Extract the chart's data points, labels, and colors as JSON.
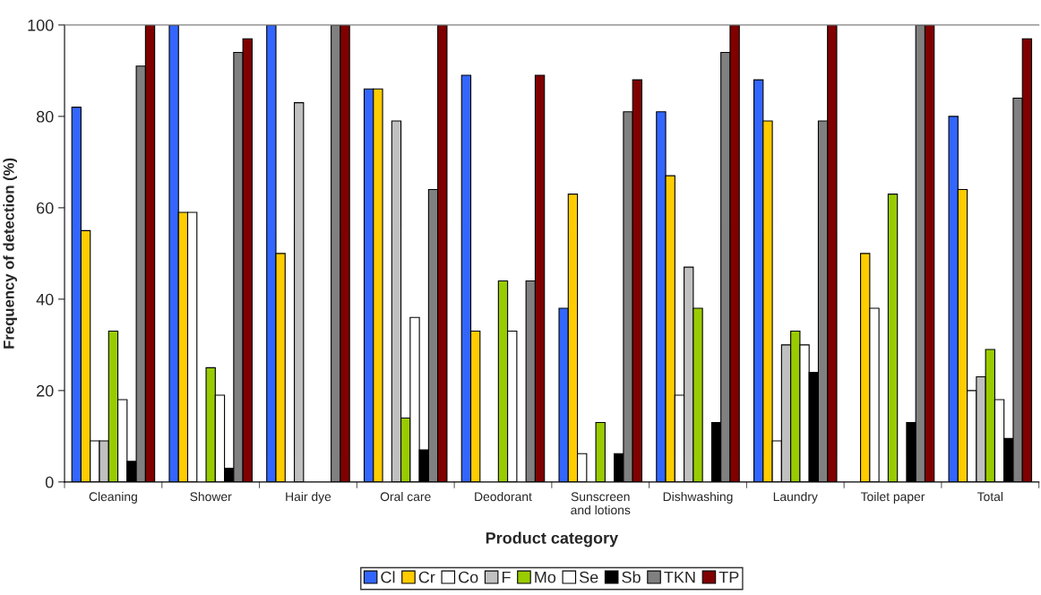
{
  "chart_data": {
    "type": "bar",
    "xlabel": "Product category",
    "ylabel": "Frequency of detection (%)",
    "categories": [
      "Cleaning",
      "Shower",
      "Hair dye",
      "Oral care",
      "Deodorant",
      "Sunscreen\nand lotions",
      "Dishwashing",
      "Laundry",
      "Toilet paper",
      "Total"
    ],
    "series": [
      {
        "name": "Cl",
        "color": "#3366ff",
        "values": [
          82,
          100,
          100,
          86,
          89,
          38,
          81,
          88,
          null,
          80
        ]
      },
      {
        "name": "Cr",
        "color": "#ffcc00",
        "values": [
          55,
          59,
          50,
          86,
          33,
          63,
          67,
          79,
          50,
          64
        ]
      },
      {
        "name": "Co",
        "color": "#ffffff",
        "values": [
          9,
          59,
          null,
          null,
          null,
          6.2,
          19,
          9,
          38,
          20
        ]
      },
      {
        "name": "F",
        "color": "#c0c0c0",
        "values": [
          9,
          null,
          83,
          79,
          null,
          null,
          47,
          30,
          null,
          23
        ]
      },
      {
        "name": "Mo",
        "color": "#99cc00",
        "values": [
          33,
          25,
          null,
          14,
          44,
          13,
          38,
          33,
          63,
          29
        ]
      },
      {
        "name": "Se",
        "color": "#ffffff",
        "values": [
          18,
          19,
          null,
          36,
          33,
          null,
          null,
          30,
          null,
          18
        ]
      },
      {
        "name": "Sb",
        "color": "#000000",
        "values": [
          4.5,
          3,
          null,
          7,
          null,
          6.2,
          13,
          24,
          13,
          9.5
        ]
      },
      {
        "name": "TKN",
        "color": "#808080",
        "values": [
          91,
          94,
          100,
          64,
          44,
          81,
          94,
          79,
          100,
          84
        ]
      },
      {
        "name": "TP",
        "color": "#800000",
        "values": [
          100,
          97,
          100,
          100,
          89,
          88,
          100,
          100,
          100,
          97
        ]
      }
    ],
    "ylim": [
      0,
      100
    ],
    "yticks": [
      0,
      20,
      40,
      60,
      80,
      100
    ],
    "grid": false,
    "legend": "bottom"
  }
}
